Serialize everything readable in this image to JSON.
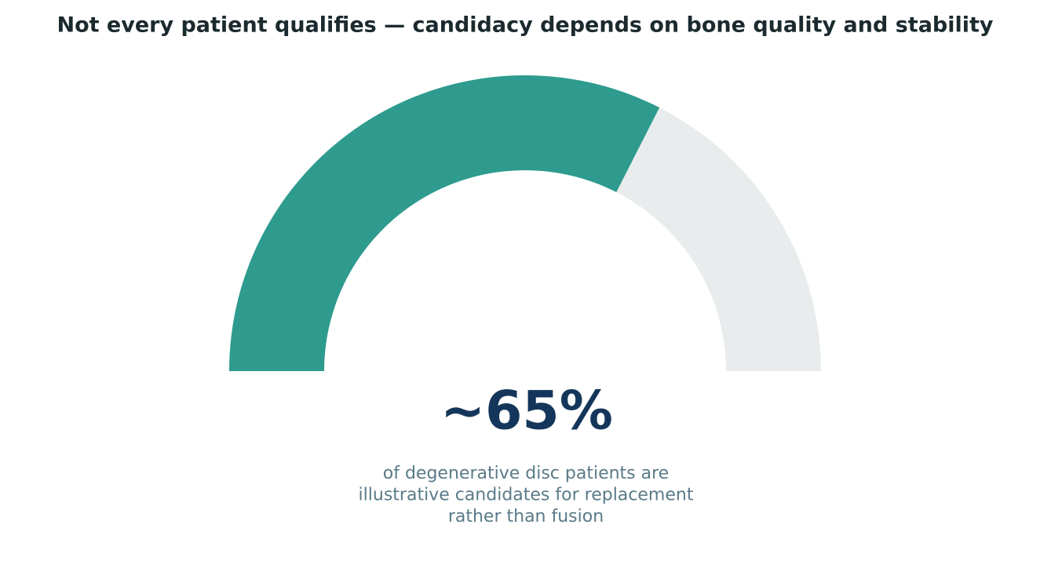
{
  "chart_data": {
    "type": "gauge",
    "title": "Not every patient qualifies — candidacy depends on bone quality and stability",
    "value": 65,
    "value_label": "~65%",
    "ylim": [
      0,
      100
    ],
    "caption": [
      "of degenerative disc patients are",
      "illustrative candidates for replacement",
      "rather than fusion"
    ],
    "color": "#2e9b8e",
    "track_color": "#e8eced"
  }
}
